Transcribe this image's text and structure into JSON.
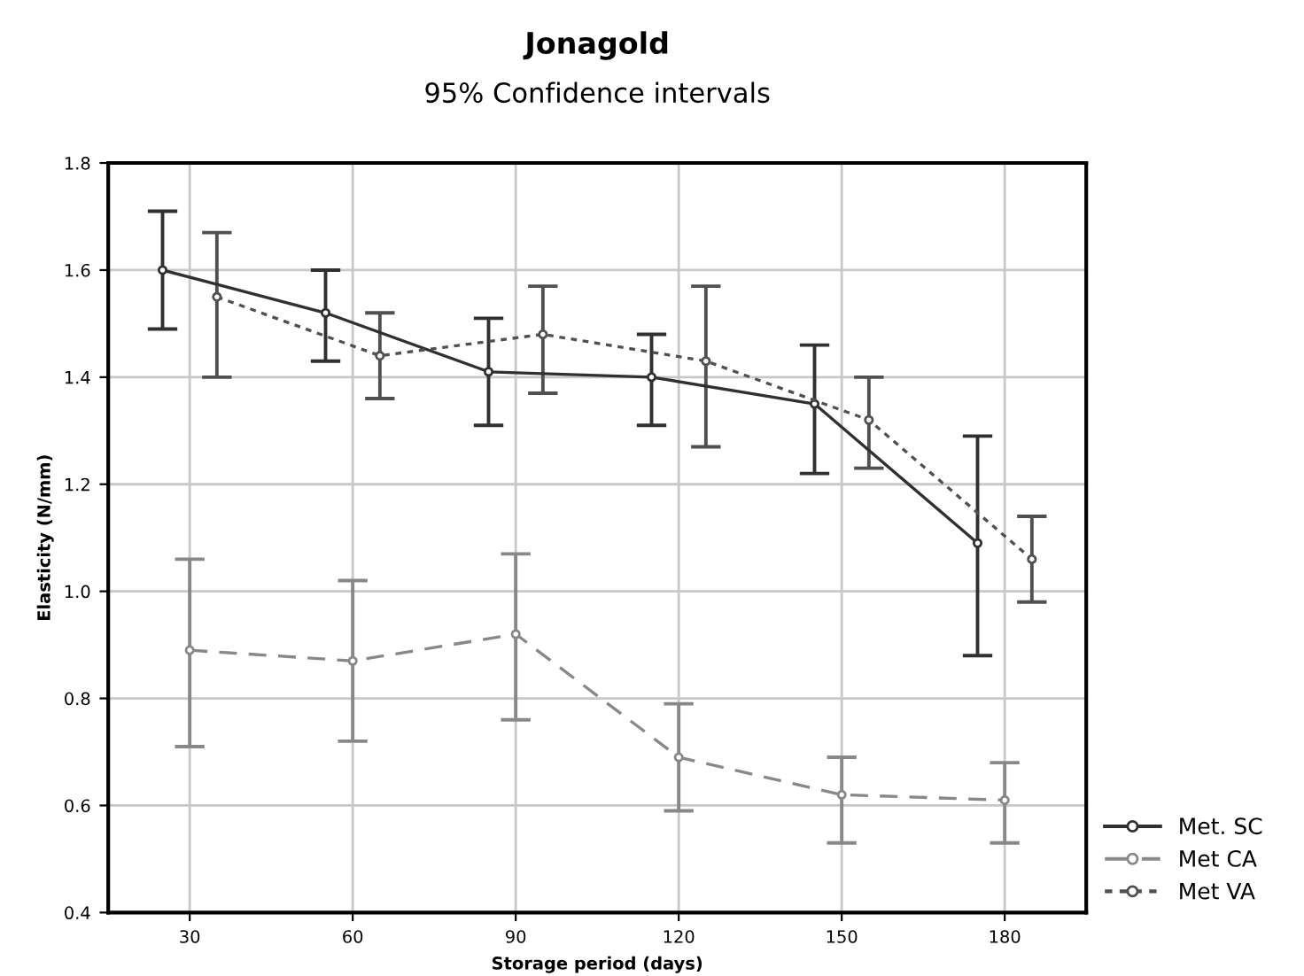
{
  "chart_data": {
    "type": "line",
    "title": "Jonagold",
    "subtitle": "95% Confidence intervals",
    "xlabel": "Storage period (days)",
    "ylabel": "Elasticity (N/mm)",
    "xlim": [
      15,
      195
    ],
    "xticks": [
      30,
      60,
      90,
      120,
      150,
      180
    ],
    "ylim": [
      0.4,
      1.8
    ],
    "yticks": [
      0.4,
      0.6,
      0.8,
      {
        "value": 1,
        "label": "1.0"
      },
      1.2,
      1.4,
      1.6,
      1.8
    ],
    "grid": true,
    "legend": "bottom right",
    "marker": "circle",
    "series": [
      {
        "name": "Met. SC",
        "color": "#303030",
        "line_style": "solid",
        "x": [
          25,
          55,
          85,
          115,
          145,
          175
        ],
        "values": [
          1.6,
          1.52,
          1.41,
          1.4,
          1.35,
          1.09
        ],
        "errors": [
          [
            1.49,
            1.71
          ],
          [
            1.43,
            1.6
          ],
          [
            1.31,
            1.51
          ],
          [
            1.31,
            1.48
          ],
          [
            1.22,
            1.46
          ],
          [
            0.88,
            1.29
          ]
        ]
      },
      {
        "name": "Met CA",
        "color": "#888888",
        "line_style": "dashed",
        "x": [
          30,
          60,
          90,
          120,
          150,
          180
        ],
        "values": [
          0.89,
          0.87,
          0.92,
          0.69,
          0.62,
          0.61
        ],
        "errors": [
          [
            0.71,
            1.06
          ],
          [
            0.72,
            1.02
          ],
          [
            0.76,
            1.07
          ],
          [
            0.59,
            0.79
          ],
          [
            0.53,
            0.69
          ],
          [
            0.53,
            0.68
          ]
        ]
      },
      {
        "name": "Met VA",
        "color": "#505050",
        "line_style": "dotted",
        "x": [
          35,
          65,
          95,
          125,
          155,
          185
        ],
        "values": [
          1.55,
          1.44,
          1.48,
          1.43,
          1.32,
          1.06
        ],
        "errors": [
          [
            1.4,
            1.67
          ],
          [
            1.36,
            1.52
          ],
          [
            1.37,
            1.57
          ],
          [
            1.27,
            1.57
          ],
          [
            1.23,
            1.4
          ],
          [
            0.98,
            1.14
          ]
        ]
      }
    ]
  }
}
